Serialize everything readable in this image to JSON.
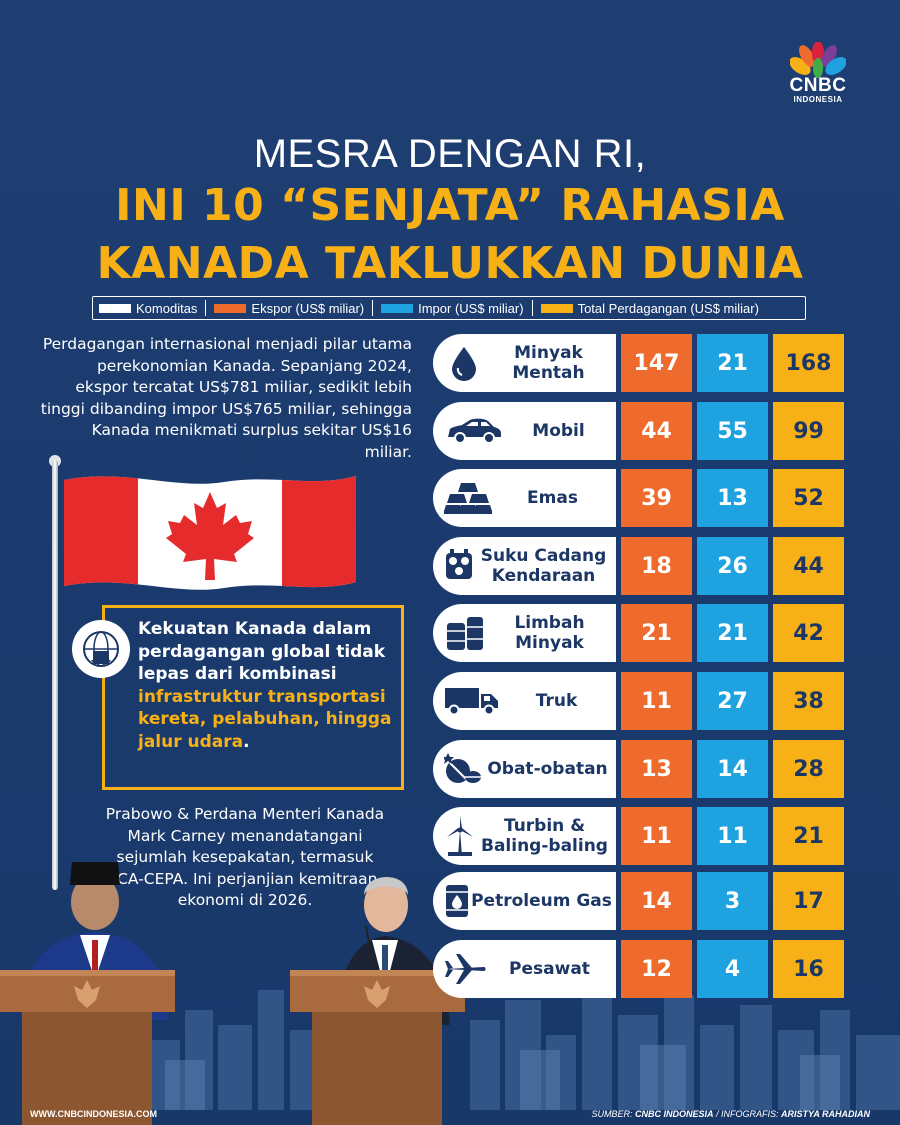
{
  "logo": {
    "brand": "CNBC",
    "sub": "INDONESIA"
  },
  "headline": {
    "line1": "MESRA DENGAN RI,",
    "line2": "INI 10 “SENJATA” RAHASIA",
    "line3": "KANADA TAKLUKKAN DUNIA"
  },
  "legend": {
    "items": [
      {
        "label": "Komoditas",
        "color": "#ffffff"
      },
      {
        "label": "Ekspor (US$ miliar)",
        "color": "#ef6b2d"
      },
      {
        "label": "Impor (US$ miliar)",
        "color": "#1ea3e0"
      },
      {
        "label": "Total Perdagangan (US$ miliar)",
        "color": "#f7b116"
      }
    ]
  },
  "intro_text": "Perdagangan internasional menjadi pilar utama perekonomian Kanada. Sepanjang 2024, ekspor tercatat US$781 miliar, sedikit lebih tinggi dibanding impor US$765 miliar, sehingga Kanada menikmati surplus sekitar US$16 miliar.",
  "callout": {
    "plain": "Kekuatan Kanada dalam perdagangan global tidak lepas dari kombinasi ",
    "highlight": "infrastruktur transportasi kereta, pelabuhan, hingga jalur udara",
    "end": "."
  },
  "para2": "Prabowo & Perdana Menteri Kanada Mark Carney menandatangani sejumlah kesepakatan, termasuk ICA-CEPA. Ini perjanjian kemitraan ekonomi di 2026.",
  "table": {
    "rows": [
      {
        "name": "Minyak Mentah",
        "icon": "oil-drop-icon",
        "ekspor": "147",
        "impor": "21",
        "total": "168"
      },
      {
        "name": "Mobil",
        "icon": "car-icon",
        "ekspor": "44",
        "impor": "55",
        "total": "99"
      },
      {
        "name": "Emas",
        "icon": "gold-bars-icon",
        "ekspor": "39",
        "impor": "13",
        "total": "52"
      },
      {
        "name": "Suku Cadang Kendaraan",
        "icon": "engine-part-icon",
        "ekspor": "18",
        "impor": "26",
        "total": "44"
      },
      {
        "name": "Limbah Minyak",
        "icon": "oil-barrels-icon",
        "ekspor": "21",
        "impor": "21",
        "total": "42"
      },
      {
        "name": "Truk",
        "icon": "truck-icon",
        "ekspor": "11",
        "impor": "27",
        "total": "38"
      },
      {
        "name": "Obat-obatan",
        "icon": "pills-icon",
        "ekspor": "13",
        "impor": "14",
        "total": "28"
      },
      {
        "name": "Turbin & Baling-baling",
        "icon": "wind-turbine-icon",
        "ekspor": "11",
        "impor": "11",
        "total": "21"
      },
      {
        "name": "Petroleum Gas",
        "icon": "gas-barrel-icon",
        "ekspor": "14",
        "impor": "3",
        "total": "17"
      },
      {
        "name": "Pesawat",
        "icon": "airplane-icon",
        "ekspor": "12",
        "impor": "4",
        "total": "16"
      }
    ]
  },
  "footer": {
    "website": "WWW.CNBCINDONESIA.COM",
    "source_label": "SUMBER: ",
    "source": "CNBC INDONESIA",
    "sep": " / ",
    "credit_label": "INFOGRAFIS: ",
    "credit": "ARISTYA RAHADIAN"
  }
}
